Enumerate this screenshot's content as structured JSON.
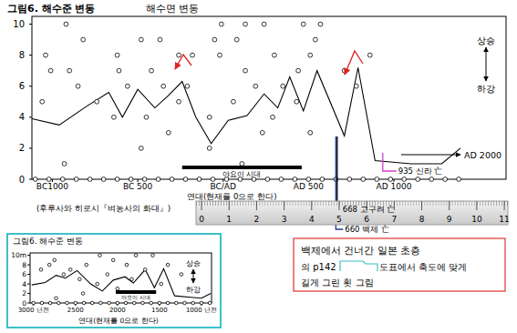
{
  "chart_data": [
    {
      "type": "line",
      "title": "그림6. 해수준 변동",
      "subtitle": "해수면 변동",
      "x_label": "연대(현재를 0으로 한다)",
      "source": "(후루사와 히로시『벼농사의 화대』)",
      "direction_labels": [
        "상승",
        "하강"
      ],
      "arrow_label": "AD 2000",
      "xlim": [
        -1120,
        1390
      ],
      "xticks": [
        {
          "value": -1000,
          "label": "BC1000"
        },
        {
          "value": -500,
          "label": "BC 500"
        },
        {
          "value": 0,
          "label": "BC/AD"
        },
        {
          "value": 500,
          "label": "AD 500"
        },
        {
          "value": 1000,
          "label": "AD 1000"
        }
      ],
      "ylim": [
        0,
        10.5
      ],
      "yticks": [
        0,
        2,
        4,
        6,
        8,
        10
      ],
      "grid": false,
      "series": [
        {
          "type": "line",
          "color": "#000000",
          "line_style": "solid",
          "x": [
            -1120,
            -960,
            -800,
            -670,
            -590,
            -500,
            -400,
            -320,
            -240,
            -160,
            -70,
            30,
            140,
            240,
            320,
            390,
            470,
            550,
            710,
            790,
            890,
            1100,
            1280,
            1390
          ],
          "values": [
            3.9,
            3.5,
            4.7,
            5.6,
            4.0,
            5.8,
            4.6,
            5.4,
            6.3,
            4.0,
            2.3,
            3.8,
            4.1,
            5.5,
            4.6,
            6.6,
            4.4,
            7.0,
            2.8,
            7.2,
            1.2,
            1.0,
            1.0,
            2.0
          ]
        },
        {
          "type": "scatter",
          "color": "#000000",
          "marker": "circle",
          "x": [
            -920,
            -10,
            130,
            240,
            470,
            570,
            -820,
            -480,
            -370,
            -50,
            80,
            540,
            -1040,
            -620,
            -260,
            -180,
            -20,
            300,
            510,
            860,
            -1010,
            -900,
            -610,
            -420,
            130,
            440,
            710,
            -850,
            -560,
            -350,
            -210,
            190,
            350,
            780,
            -1060,
            -740,
            -260,
            60,
            430,
            -640,
            -450,
            -80,
            290,
            -320,
            230,
            510,
            -480,
            -80,
            -930,
            110
          ],
          "values": [
            10,
            10,
            10,
            10,
            10,
            10,
            9,
            9,
            9,
            9,
            9,
            9,
            8,
            8,
            8,
            8,
            8,
            8,
            8,
            8,
            7,
            7,
            7,
            7,
            7,
            7,
            7,
            6,
            6,
            6,
            6,
            6,
            6,
            6,
            5,
            5,
            5,
            5,
            5,
            4,
            4,
            4,
            4,
            3,
            3,
            3,
            2,
            2,
            1,
            1
          ]
        },
        {
          "type": "scatter",
          "color": "#000000",
          "marker": "circle",
          "x": [
            -1100,
            -1020,
            -940,
            -860,
            -780,
            -700,
            -620,
            -540,
            -460,
            -380,
            -300,
            -220,
            -140,
            -60,
            20,
            100,
            180,
            260,
            340,
            420,
            500,
            580,
            660,
            740,
            820,
            900,
            980,
            1060,
            1140,
            1220,
            1300,
            1380
          ],
          "values": [
            0,
            0,
            0,
            0,
            0,
            0,
            0,
            0,
            0,
            0,
            0,
            0,
            0,
            0,
            0,
            0,
            0,
            0,
            0,
            0,
            0,
            0,
            0,
            0,
            0,
            0,
            0,
            0,
            0,
            0,
            0,
            0
          ]
        }
      ],
      "periods": [
        {
          "label": "야요이 시대",
          "start": -240,
          "end": 460
        }
      ],
      "events": [
        {
          "value": 668,
          "label": "668 고구려 亡",
          "color": "#000000"
        },
        {
          "value": 660,
          "label": "660 백제 亡",
          "color": "#1f3b8c"
        },
        {
          "value": 935,
          "label": "935 신라 亡",
          "color": "#d23cd2"
        }
      ]
    },
    {
      "type": "line",
      "title": "그림6. 해수준 변동",
      "x_label": "연대(현재를 0으로 한다)",
      "direction_labels": [
        "상승",
        "하강"
      ],
      "xlim": [
        3040,
        880
      ],
      "xticks": [
        {
          "value": 3000,
          "label": "3000 년전"
        },
        2500,
        2000,
        1500,
        {
          "value": 1000,
          "label": "1000 년전"
        }
      ],
      "ylim": [
        0,
        10.5
      ],
      "yticks": [
        0,
        2,
        4,
        6,
        8,
        {
          "value": 10,
          "label": "10m"
        }
      ],
      "grid": false,
      "series": [
        {
          "type": "line",
          "color": "#000000",
          "line_style": "solid",
          "x": [
            3020,
            2860,
            2730,
            2620,
            2480,
            2320,
            2180,
            2050,
            1910,
            1810,
            1670,
            1560,
            1450,
            1320,
            1130,
            1000,
            890
          ],
          "values": [
            3.8,
            4.3,
            5.8,
            5.2,
            6.8,
            4.0,
            2.5,
            4.8,
            5.5,
            4.2,
            7.0,
            3.2,
            7.2,
            1.5,
            1.2,
            1.0,
            2.0
          ]
        },
        {
          "type": "scatter",
          "color": "#000000",
          "marker": "circle",
          "x": [
            2210,
            1780,
            1580,
            2750,
            2050,
            2810,
            2370,
            1890,
            1400,
            2910,
            2560,
            1670,
            2640,
            2120,
            1240,
            2450,
            1830,
            2240,
            1480,
            2000,
            2410,
            2730
          ],
          "values": [
            10,
            10,
            10,
            9,
            9,
            8,
            8,
            8,
            8,
            7,
            7,
            7,
            6,
            6,
            6,
            5,
            5,
            4,
            4,
            3,
            2,
            1
          ]
        },
        {
          "type": "scatter",
          "color": "#000000",
          "marker": "circle",
          "x": [
            3000,
            2900,
            2800,
            2700,
            2600,
            2500,
            2400,
            2300,
            2200,
            2100,
            2000,
            1900,
            1800,
            1700,
            1600,
            1500,
            1400,
            1300,
            1200,
            1100,
            1000,
            900
          ],
          "values": [
            0,
            0,
            0,
            0,
            0,
            0,
            0,
            0,
            0,
            0,
            0,
            0,
            0,
            0,
            0,
            0,
            0,
            0,
            0,
            0,
            0,
            0
          ]
        }
      ],
      "periods": [
        {
          "label": "야요이 시대",
          "start": 2020,
          "end": 1540
        }
      ]
    }
  ],
  "ruler": {
    "xlim": [
      -0.2,
      11.13
    ],
    "ticks": [
      0,
      1,
      2,
      3,
      4,
      5,
      6,
      7,
      8,
      9,
      10,
      11
    ]
  },
  "note": {
    "lines": [
      "백제에서 건너간 일본 초층",
      "의 p142",
      "도표에서 축도에 맞게",
      "길게 그린 횟 그림"
    ]
  }
}
